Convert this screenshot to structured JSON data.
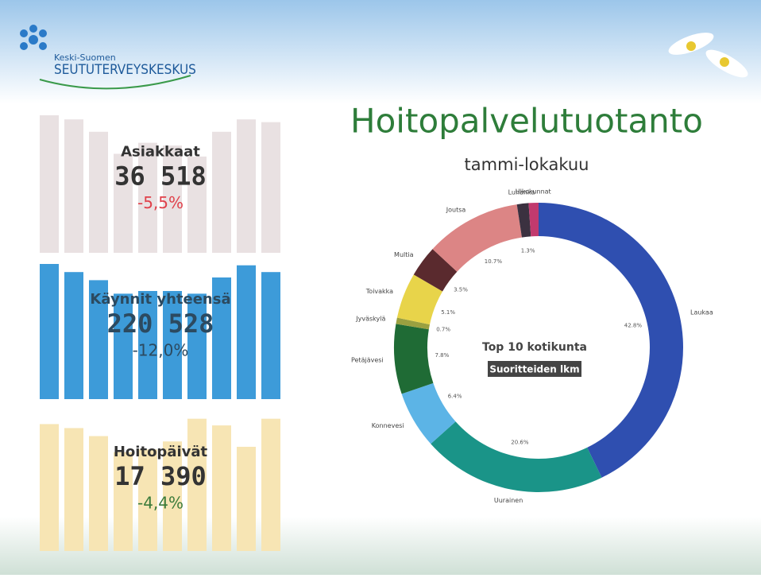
{
  "header": {
    "logo_small": "Keski-Suomen",
    "logo_large": "SEUTUTERVEYSKESKUS"
  },
  "kpis": [
    {
      "label": "Asiakkaat",
      "value": "36 518",
      "change": "-5,5%"
    },
    {
      "label": "Käynnit yhteensä",
      "value": "220 528",
      "change": "-12,0%"
    },
    {
      "label": "Hoitopäivät",
      "value": "17 390",
      "change": "-4,4%"
    }
  ],
  "chart_data": {
    "type": "donut",
    "title": "Hoitopalvelutuotanto",
    "subtitle": "tammi-lokakuu",
    "center_title": "Top 10 kotikunta",
    "center_subtitle": "Suoritteiden lkm",
    "categories": [
      "Laukaa",
      "Uurainen",
      "Konnevesi",
      "Petäjävesi",
      "Jyväskylä",
      "Toivakka",
      "Multia",
      "Joutsa",
      "Luhanka",
      "Ulkokunnat"
    ],
    "values": [
      42.8,
      20.6,
      6.4,
      7.8,
      0.7,
      5.1,
      3.5,
      10.7,
      1.3,
      1.1
    ],
    "value_labels": [
      "42.8%",
      "20.6%",
      "6.4%",
      "7.8%",
      "0.7%",
      "5.1%",
      "3.5%",
      "10.7%",
      "1.3%",
      null
    ],
    "colors": [
      "#2f4fb0",
      "#1a9488",
      "#5cb4e6",
      "#1f6b35",
      "#9aa040",
      "#e8d44a",
      "#5a2a2e",
      "#dc8585",
      "#3b3140",
      "#c23a6e"
    ]
  }
}
